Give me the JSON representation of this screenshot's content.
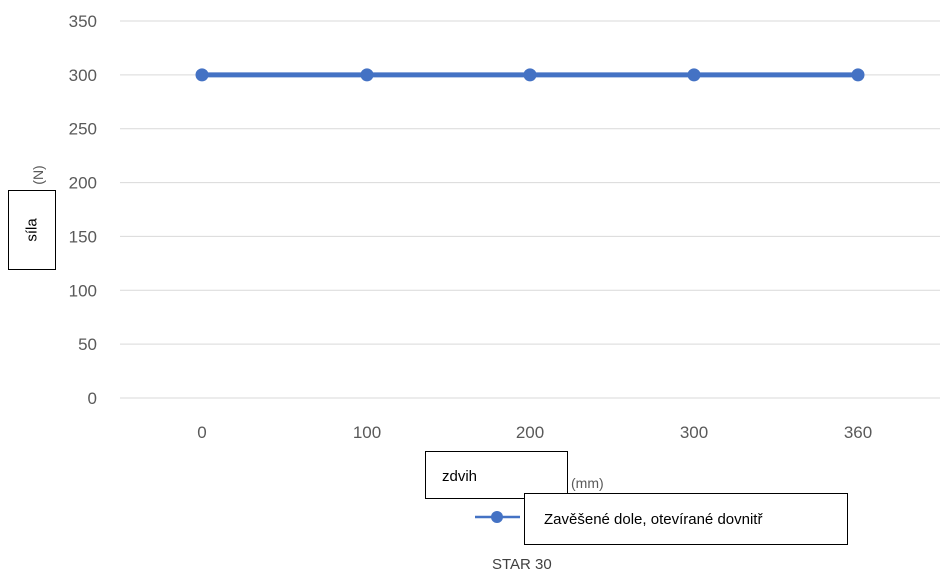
{
  "chart_data": {
    "type": "line",
    "title": "STAR 30",
    "categories": [
      "0",
      "100",
      "200",
      "300",
      "360"
    ],
    "series": [
      {
        "name": "Zavěšené dole, otevírané dovnitř",
        "values": [
          300,
          300,
          300,
          300,
          300
        ],
        "color": "#4472c4"
      }
    ],
    "ylabel": "síla",
    "ylabel_unit": "(N)",
    "xlabel": "zdvih",
    "xlabel_unit": "(mm)",
    "ylim": [
      0,
      350
    ],
    "yticks": [
      0,
      50,
      100,
      150,
      200,
      250,
      300,
      350
    ],
    "grid": true,
    "legend_position": "bottom"
  }
}
